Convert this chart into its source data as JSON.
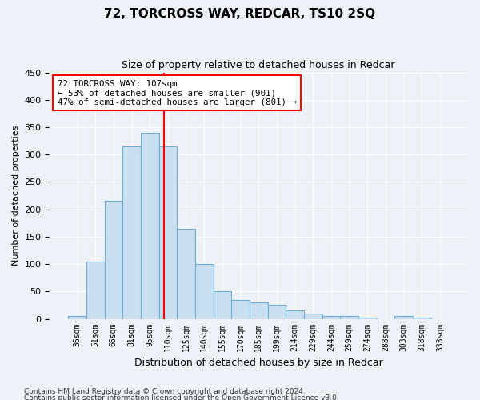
{
  "title": "72, TORCROSS WAY, REDCAR, TS10 2SQ",
  "subtitle": "Size of property relative to detached houses in Redcar",
  "xlabel": "Distribution of detached houses by size in Redcar",
  "ylabel": "Number of detached properties",
  "bar_labels": [
    "36sqm",
    "51sqm",
    "66sqm",
    "81sqm",
    "95sqm",
    "110sqm",
    "125sqm",
    "140sqm",
    "155sqm",
    "170sqm",
    "185sqm",
    "199sqm",
    "214sqm",
    "229sqm",
    "244sqm",
    "259sqm",
    "274sqm",
    "288sqm",
    "303sqm",
    "318sqm",
    "333sqm"
  ],
  "bar_values": [
    5,
    105,
    215,
    315,
    340,
    315,
    165,
    100,
    50,
    35,
    30,
    25,
    15,
    10,
    5,
    5,
    2,
    0,
    5,
    2,
    0
  ],
  "bar_color": "#c9dff0",
  "bar_edge_color": "#6aaed6",
  "vline_color": "red",
  "annotation_text": "72 TORCROSS WAY: 107sqm\n← 53% of detached houses are smaller (901)\n47% of semi-detached houses are larger (801) →",
  "annotation_box_color": "white",
  "annotation_box_edge_color": "red",
  "ylim": [
    0,
    450
  ],
  "yticks": [
    0,
    50,
    100,
    150,
    200,
    250,
    300,
    350,
    400,
    450
  ],
  "footnote1": "Contains HM Land Registry data © Crown copyright and database right 2024.",
  "footnote2": "Contains public sector information licensed under the Open Government Licence v3.0.",
  "bg_color": "#eef2f8",
  "plot_bg_color": "#eef2f8"
}
